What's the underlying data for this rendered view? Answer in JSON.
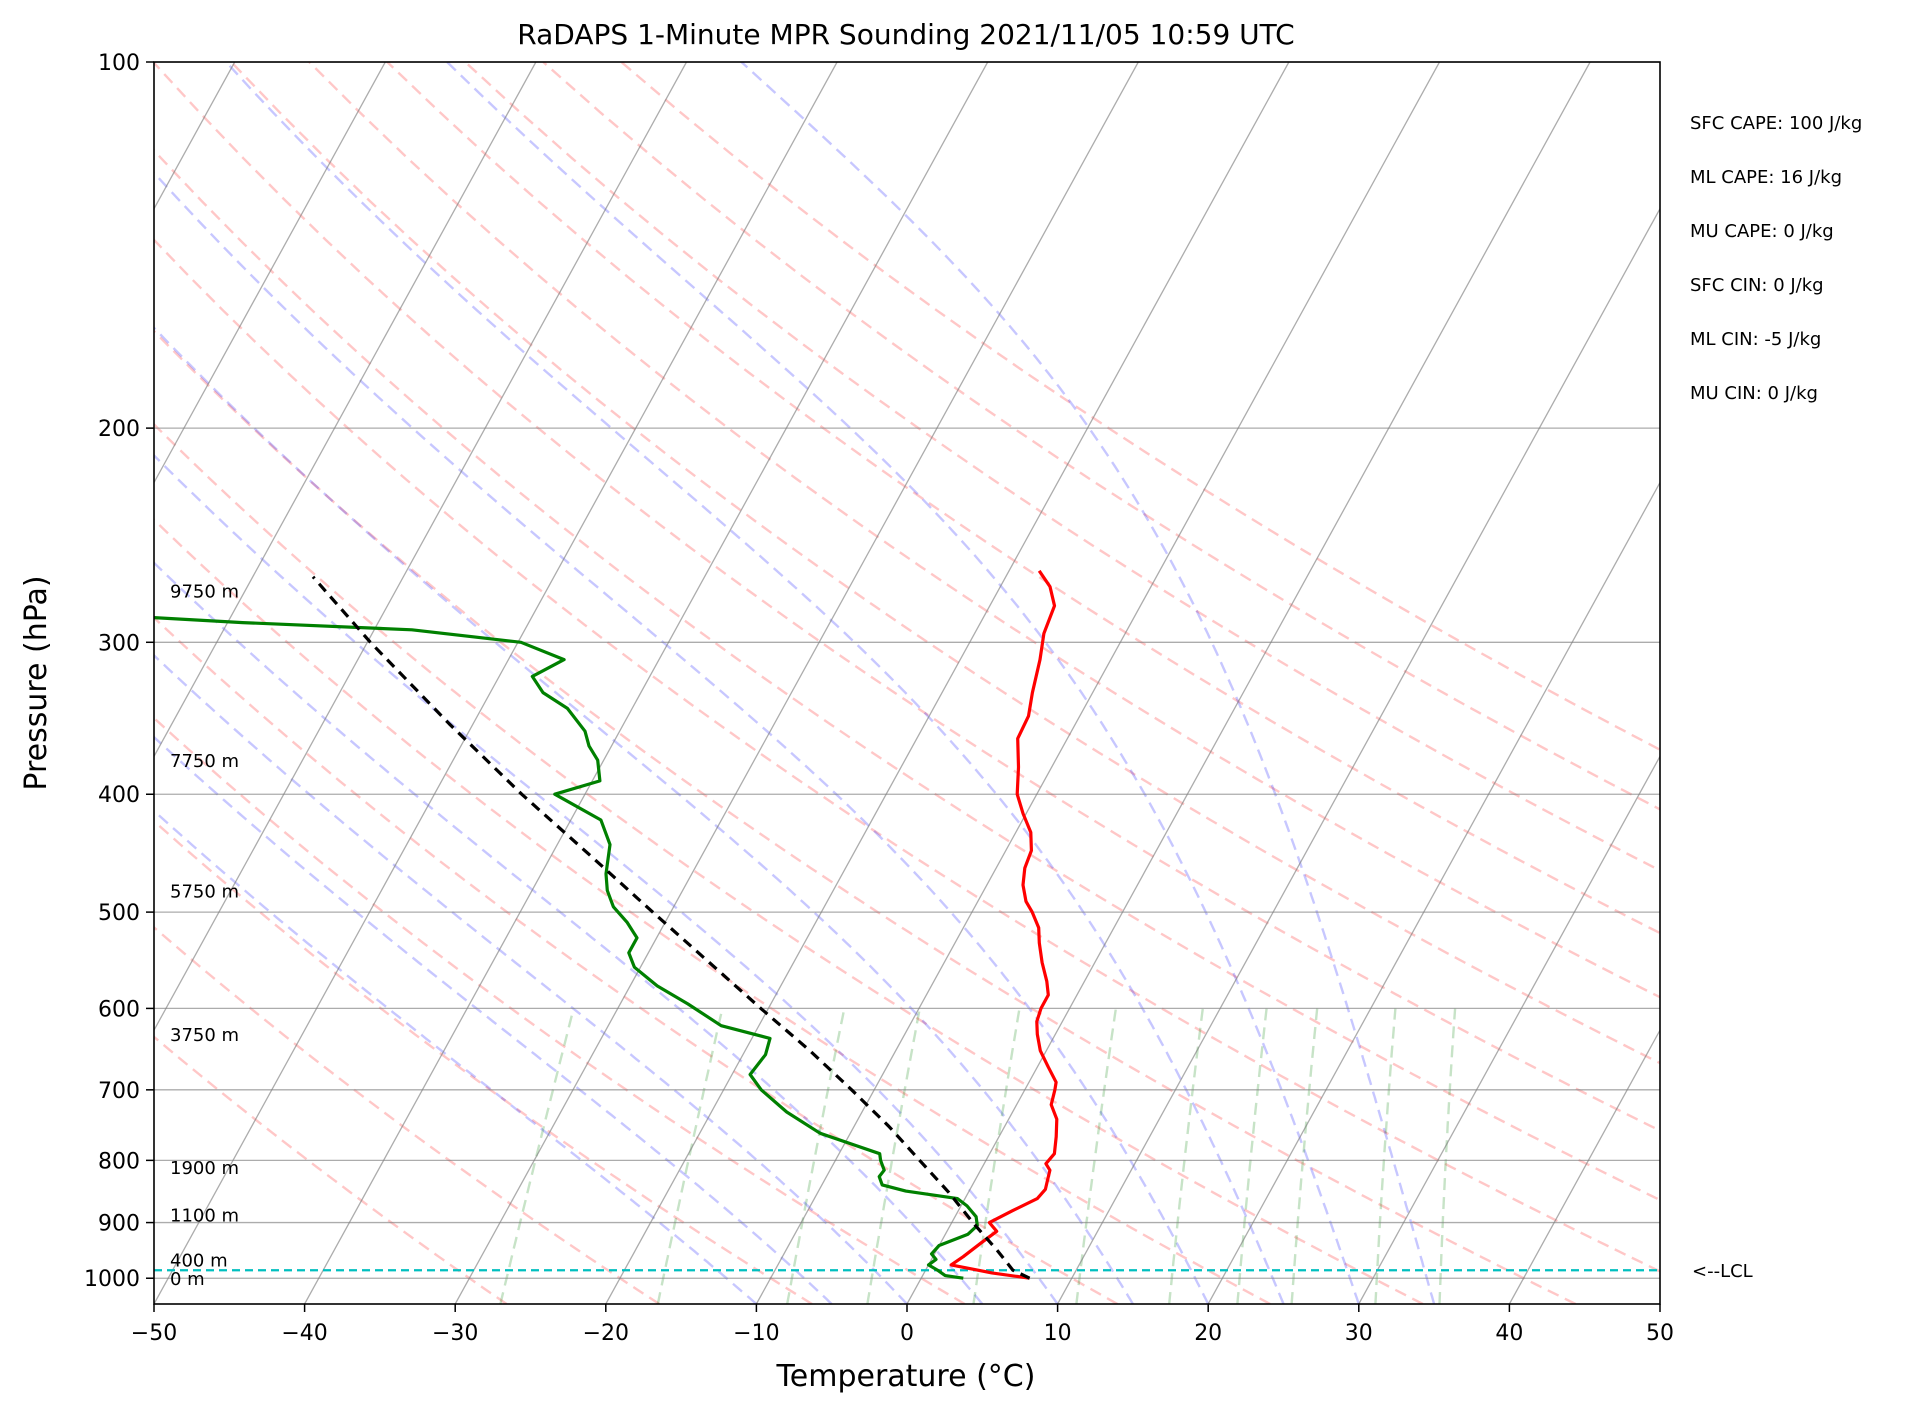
{
  "chart_data": {
    "type": "line",
    "title": "RaDAPS 1-Minute MPR Sounding 2021/11/05 10:59 UTC",
    "xlabel": "Temperature (°C)",
    "ylabel": "Pressure (hPa)",
    "xlim": [
      -50,
      50
    ],
    "ylim": [
      1050,
      100
    ],
    "y_scale": "log",
    "skew": "skew-T",
    "x_ticks": [
      -50,
      -40,
      -30,
      -20,
      -10,
      0,
      10,
      20,
      30,
      40,
      50
    ],
    "y_ticks": [
      100,
      200,
      300,
      400,
      500,
      600,
      700,
      800,
      900,
      1000
    ],
    "grid": true,
    "dry_adiabats_c": [
      -30,
      -20,
      -10,
      0,
      10,
      20,
      30,
      40,
      50,
      60,
      70,
      80,
      90,
      100,
      110,
      120,
      130
    ],
    "moist_adiabats_c": [
      -10,
      -5,
      0,
      5,
      10,
      15,
      20,
      25,
      30,
      35
    ],
    "mixing_ratio_lines": [
      0.4,
      1,
      2,
      3,
      5,
      8,
      12,
      16,
      20,
      28,
      36
    ],
    "series": [
      {
        "kind": "temperature",
        "color": "#ff0000",
        "points": [
          {
            "p": 1000,
            "t": 7.2
          },
          {
            "p": 990,
            "t": 4.5
          },
          {
            "p": 975,
            "t": 1.5
          },
          {
            "p": 960,
            "t": 2.0
          },
          {
            "p": 935,
            "t": 2.7
          },
          {
            "p": 915,
            "t": 3.3
          },
          {
            "p": 900,
            "t": 2.5
          },
          {
            "p": 880,
            "t": 3.6
          },
          {
            "p": 860,
            "t": 4.8
          },
          {
            "p": 845,
            "t": 5.0
          },
          {
            "p": 830,
            "t": 4.8
          },
          {
            "p": 815,
            "t": 4.6
          },
          {
            "p": 805,
            "t": 4.1
          },
          {
            "p": 790,
            "t": 4.3
          },
          {
            "p": 765,
            "t": 3.8
          },
          {
            "p": 740,
            "t": 3.2
          },
          {
            "p": 720,
            "t": 2.3
          },
          {
            "p": 700,
            "t": 2.0
          },
          {
            "p": 690,
            "t": 1.8
          },
          {
            "p": 670,
            "t": 0.7
          },
          {
            "p": 650,
            "t": -0.4
          },
          {
            "p": 630,
            "t": -1.2
          },
          {
            "p": 615,
            "t": -1.7
          },
          {
            "p": 600,
            "t": -1.9
          },
          {
            "p": 585,
            "t": -1.9
          },
          {
            "p": 570,
            "t": -2.5
          },
          {
            "p": 550,
            "t": -3.5
          },
          {
            "p": 530,
            "t": -4.4
          },
          {
            "p": 515,
            "t": -5.0
          },
          {
            "p": 500,
            "t": -6.0
          },
          {
            "p": 490,
            "t": -6.8
          },
          {
            "p": 475,
            "t": -7.6
          },
          {
            "p": 460,
            "t": -8.1
          },
          {
            "p": 445,
            "t": -8.3
          },
          {
            "p": 430,
            "t": -9.0
          },
          {
            "p": 415,
            "t": -10.2
          },
          {
            "p": 400,
            "t": -11.3
          },
          {
            "p": 380,
            "t": -12.2
          },
          {
            "p": 360,
            "t": -13.3
          },
          {
            "p": 345,
            "t": -13.4
          },
          {
            "p": 330,
            "t": -14.0
          },
          {
            "p": 310,
            "t": -14.7
          },
          {
            "p": 295,
            "t": -15.4
          },
          {
            "p": 280,
            "t": -15.7
          },
          {
            "p": 270,
            "t": -16.7
          },
          {
            "p": 262,
            "t": -18.0
          }
        ]
      },
      {
        "kind": "dewpoint",
        "color": "#008000",
        "points": [
          {
            "p": 1000,
            "t": 2.8
          },
          {
            "p": 995,
            "t": 1.5
          },
          {
            "p": 985,
            "t": 0.8
          },
          {
            "p": 975,
            "t": 0.0
          },
          {
            "p": 965,
            "t": 0.3
          },
          {
            "p": 955,
            "t": -0.2
          },
          {
            "p": 940,
            "t": 0.0
          },
          {
            "p": 920,
            "t": 1.5
          },
          {
            "p": 905,
            "t": 1.8
          },
          {
            "p": 890,
            "t": 1.4
          },
          {
            "p": 872,
            "t": 0.4
          },
          {
            "p": 860,
            "t": -0.5
          },
          {
            "p": 848,
            "t": -4.2
          },
          {
            "p": 838,
            "t": -6.0
          },
          {
            "p": 825,
            "t": -6.5
          },
          {
            "p": 815,
            "t": -6.4
          },
          {
            "p": 800,
            "t": -7.0
          },
          {
            "p": 790,
            "t": -7.3
          },
          {
            "p": 760,
            "t": -12.0
          },
          {
            "p": 730,
            "t": -15.0
          },
          {
            "p": 700,
            "t": -17.5
          },
          {
            "p": 680,
            "t": -18.8
          },
          {
            "p": 655,
            "t": -18.5
          },
          {
            "p": 635,
            "t": -18.8
          },
          {
            "p": 620,
            "t": -22.5
          },
          {
            "p": 595,
            "t": -25.5
          },
          {
            "p": 575,
            "t": -28.2
          },
          {
            "p": 555,
            "t": -30.4
          },
          {
            "p": 540,
            "t": -31.3
          },
          {
            "p": 525,
            "t": -31.3
          },
          {
            "p": 510,
            "t": -32.5
          },
          {
            "p": 495,
            "t": -34.0
          },
          {
            "p": 480,
            "t": -35.0
          },
          {
            "p": 465,
            "t": -35.7
          },
          {
            "p": 440,
            "t": -36.5
          },
          {
            "p": 420,
            "t": -38.0
          },
          {
            "p": 400,
            "t": -42.0
          },
          {
            "p": 390,
            "t": -39.5
          },
          {
            "p": 375,
            "t": -40.4
          },
          {
            "p": 365,
            "t": -41.5
          },
          {
            "p": 355,
            "t": -42.3
          },
          {
            "p": 340,
            "t": -44.3
          },
          {
            "p": 330,
            "t": -46.5
          },
          {
            "p": 320,
            "t": -47.8
          },
          {
            "p": 310,
            "t": -46.3
          },
          {
            "p": 300,
            "t": -49.8
          },
          {
            "p": 293,
            "t": -57.5
          },
          {
            "p": 289,
            "t": -69.0
          },
          {
            "p": 285,
            "t": -78.0
          }
        ]
      },
      {
        "kind": "parcel",
        "color": "#000000",
        "style": "dashed",
        "points": [
          {
            "p": 1000,
            "t": 7.2
          },
          {
            "p": 985,
            "t": 5.8
          },
          {
            "p": 950,
            "t": 4.1
          },
          {
            "p": 900,
            "t": 1.4
          },
          {
            "p": 850,
            "t": -1.3
          },
          {
            "p": 800,
            "t": -4.4
          },
          {
            "p": 750,
            "t": -7.7
          },
          {
            "p": 700,
            "t": -11.5
          },
          {
            "p": 650,
            "t": -15.7
          },
          {
            "p": 600,
            "t": -20.5
          },
          {
            "p": 550,
            "t": -25.6
          },
          {
            "p": 500,
            "t": -31.2
          },
          {
            "p": 450,
            "t": -37.3
          },
          {
            "p": 400,
            "t": -44.2
          },
          {
            "p": 350,
            "t": -51.6
          },
          {
            "p": 300,
            "t": -59.8
          },
          {
            "p": 265,
            "t": -66.0
          }
        ]
      }
    ],
    "lcl": {
      "p": 985,
      "label": "<--LCL",
      "color": "#00bfbf"
    },
    "height_labels": [
      {
        "p": 1000,
        "label": "0 m"
      },
      {
        "p": 965,
        "label": "400 m"
      },
      {
        "p": 886,
        "label": "1100 m"
      },
      {
        "p": 810,
        "label": "1900 m"
      },
      {
        "p": 630,
        "label": "3750 m"
      },
      {
        "p": 480,
        "label": "5750 m"
      },
      {
        "p": 375,
        "label": "7750 m"
      },
      {
        "p": 272,
        "label": "9750 m"
      }
    ],
    "indices": [
      {
        "label": "SFC CAPE: 100 J/kg"
      },
      {
        "label": "ML CAPE: 16 J/kg"
      },
      {
        "label": "MU CAPE: 0 J/kg"
      },
      {
        "label": "SFC CIN: 0 J/kg"
      },
      {
        "label": "ML CIN: -5 J/kg"
      },
      {
        "label": "MU CIN: 0 J/kg"
      }
    ]
  }
}
